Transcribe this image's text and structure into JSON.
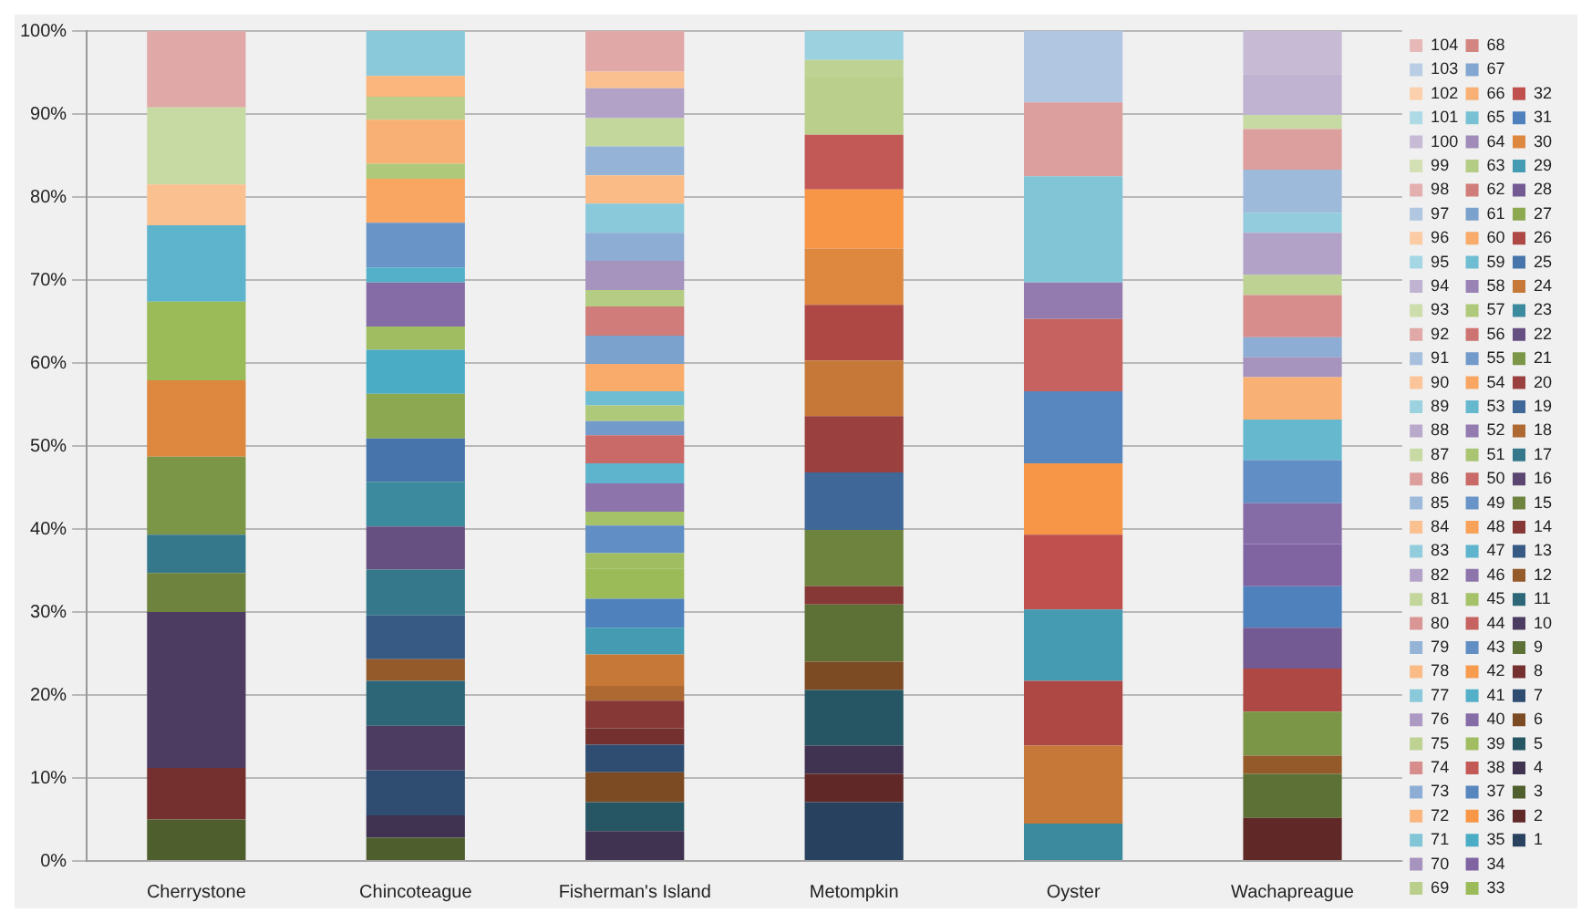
{
  "chart_data": {
    "type": "bar",
    "stacked": true,
    "categories": [
      "Cherrystone",
      "Chincoteague",
      "Fisherman's Island",
      "Metompkin",
      "Oyster",
      "Wachapreague"
    ],
    "ylim": [
      0,
      100
    ],
    "yticks": [
      {
        "value": 0,
        "label": "0%"
      },
      {
        "value": 10,
        "label": "10%"
      },
      {
        "value": 20,
        "label": "20%"
      },
      {
        "value": 30,
        "label": "30%"
      },
      {
        "value": 40,
        "label": "40%"
      },
      {
        "value": 50,
        "label": "50%"
      },
      {
        "value": 60,
        "label": "60%"
      },
      {
        "value": 70,
        "label": "70%"
      },
      {
        "value": 80,
        "label": "80%"
      },
      {
        "value": 90,
        "label": "90%"
      },
      {
        "value": 100,
        "label": "100%"
      }
    ],
    "grid": "y",
    "legend": "right",
    "series": [
      {
        "name": "1",
        "color": "#28415f",
        "values": [
          0,
          0,
          0,
          7.1,
          0,
          0
        ]
      },
      {
        "name": "2",
        "color": "#602827",
        "values": [
          0,
          0,
          0,
          3.4,
          0,
          5.2
        ]
      },
      {
        "name": "3",
        "color": "#4e5e2d",
        "values": [
          5.0,
          2.8,
          0,
          0,
          0,
          0
        ]
      },
      {
        "name": "4",
        "color": "#403251",
        "values": [
          0,
          2.7,
          3.6,
          3.4,
          0,
          0
        ]
      },
      {
        "name": "5",
        "color": "#265663",
        "values": [
          0,
          0,
          3.5,
          6.7,
          0,
          0
        ]
      },
      {
        "name": "6",
        "color": "#7c4b23",
        "values": [
          0,
          0,
          3.6,
          3.4,
          0,
          0
        ]
      },
      {
        "name": "7",
        "color": "#2f4d71",
        "values": [
          0,
          5.4,
          3.3,
          0,
          0,
          0
        ]
      },
      {
        "name": "8",
        "color": "#73302e",
        "values": [
          6.2,
          0,
          2.0,
          0,
          0,
          0
        ]
      },
      {
        "name": "9",
        "color": "#5d7035",
        "values": [
          0,
          0,
          0,
          6.9,
          0,
          5.3
        ]
      },
      {
        "name": "10",
        "color": "#4d3c61",
        "values": [
          18.8,
          5.4,
          0,
          0,
          0,
          0
        ]
      },
      {
        "name": "11",
        "color": "#2d6777",
        "values": [
          0,
          5.4,
          0,
          0,
          0,
          0
        ]
      },
      {
        "name": "12",
        "color": "#945a2a",
        "values": [
          0,
          2.6,
          0,
          0,
          0,
          2.2
        ]
      },
      {
        "name": "13",
        "color": "#375a84",
        "values": [
          0,
          5.3,
          0,
          0,
          0,
          0
        ]
      },
      {
        "name": "14",
        "color": "#863836",
        "values": [
          0,
          0,
          3.3,
          2.2,
          0,
          0
        ]
      },
      {
        "name": "15",
        "color": "#6d833e",
        "values": [
          4.7,
          0,
          0,
          6.8,
          0,
          0
        ]
      },
      {
        "name": "16",
        "color": "#5a4671",
        "values": [
          0,
          0,
          0,
          0,
          0,
          0
        ]
      },
      {
        "name": "17",
        "color": "#35788b",
        "values": [
          4.6,
          5.5,
          0,
          0,
          0,
          0
        ]
      },
      {
        "name": "18",
        "color": "#ad6931",
        "values": [
          0,
          0,
          1.8,
          0,
          0,
          0
        ]
      },
      {
        "name": "19",
        "color": "#3f6797",
        "values": [
          0,
          0,
          0,
          6.9,
          0,
          0
        ]
      },
      {
        "name": "20",
        "color": "#9a403e",
        "values": [
          0,
          0,
          0,
          6.8,
          0,
          0
        ]
      },
      {
        "name": "21",
        "color": "#7c9647",
        "values": [
          9.4,
          0,
          0,
          0,
          0,
          5.3
        ]
      },
      {
        "name": "22",
        "color": "#665082",
        "values": [
          0,
          5.2,
          0,
          0,
          0,
          0
        ]
      },
      {
        "name": "23",
        "color": "#3c8a9e",
        "values": [
          0,
          5.4,
          0,
          0,
          4.5,
          0
        ]
      },
      {
        "name": "24",
        "color": "#c67838",
        "values": [
          0,
          0,
          3.8,
          6.7,
          9.4,
          0
        ]
      },
      {
        "name": "25",
        "color": "#4774aa",
        "values": [
          0,
          5.2,
          0,
          0,
          0,
          0
        ]
      },
      {
        "name": "26",
        "color": "#ad4845",
        "values": [
          0,
          0,
          0,
          6.7,
          7.8,
          5.2
        ]
      },
      {
        "name": "27",
        "color": "#8ca850",
        "values": [
          0,
          5.4,
          0,
          0,
          0,
          0
        ]
      },
      {
        "name": "28",
        "color": "#735a92",
        "values": [
          0,
          0,
          0,
          0,
          0,
          4.9
        ]
      },
      {
        "name": "29",
        "color": "#449bb2",
        "values": [
          0,
          0,
          3.2,
          0,
          8.6,
          0
        ]
      },
      {
        "name": "30",
        "color": "#de873f",
        "values": [
          9.2,
          0,
          0,
          6.8,
          0,
          0
        ]
      },
      {
        "name": "31",
        "color": "#4f81bd",
        "values": [
          0,
          0,
          3.5,
          0,
          0,
          5.0
        ]
      },
      {
        "name": "32",
        "color": "#c0504d",
        "values": [
          0,
          0,
          0,
          0,
          9.0,
          0
        ]
      },
      {
        "name": "33",
        "color": "#9bbb59",
        "values": [
          9.5,
          0,
          3.6,
          0,
          0,
          0
        ]
      },
      {
        "name": "34",
        "color": "#8064a2",
        "values": [
          0,
          0,
          0,
          0,
          0,
          5.1
        ]
      },
      {
        "name": "35",
        "color": "#4bacc6",
        "values": [
          0,
          5.3,
          0,
          0,
          0,
          0
        ]
      },
      {
        "name": "36",
        "color": "#f79646",
        "values": [
          0,
          0,
          0,
          7.1,
          8.6,
          0
        ]
      },
      {
        "name": "37",
        "color": "#5887c0",
        "values": [
          0,
          0,
          0,
          0,
          8.7,
          0
        ]
      },
      {
        "name": "38",
        "color": "#c35956",
        "values": [
          0,
          0,
          0,
          6.6,
          0,
          0
        ]
      },
      {
        "name": "39",
        "color": "#a0be61",
        "values": [
          0,
          2.8,
          1.9,
          0,
          0,
          0
        ]
      },
      {
        "name": "40",
        "color": "#866ca7",
        "values": [
          0,
          5.3,
          0,
          0,
          0,
          4.9
        ]
      },
      {
        "name": "41",
        "color": "#54b0c9",
        "values": [
          0,
          1.8,
          0,
          0,
          0,
          0
        ]
      },
      {
        "name": "42",
        "color": "#f79b4f",
        "values": [
          0,
          0,
          0,
          0,
          0,
          0
        ]
      },
      {
        "name": "43",
        "color": "#618ec4",
        "values": [
          0,
          0,
          3.3,
          0,
          0,
          5.2
        ]
      },
      {
        "name": "44",
        "color": "#c6625f",
        "values": [
          0,
          0,
          0,
          0,
          8.7,
          0
        ]
      },
      {
        "name": "45",
        "color": "#a5c269",
        "values": [
          0,
          0,
          1.7,
          0,
          0,
          0
        ]
      },
      {
        "name": "46",
        "color": "#8d74ab",
        "values": [
          0,
          0,
          3.4,
          0,
          0,
          0
        ]
      },
      {
        "name": "47",
        "color": "#5db4cc",
        "values": [
          9.2,
          0,
          2.4,
          0,
          0,
          0
        ]
      },
      {
        "name": "48",
        "color": "#f8a159",
        "values": [
          0,
          0,
          0,
          0,
          0,
          0
        ]
      },
      {
        "name": "49",
        "color": "#6994c7",
        "values": [
          0,
          5.4,
          0,
          0,
          0,
          0
        ]
      },
      {
        "name": "50",
        "color": "#c96a68",
        "values": [
          0,
          0,
          3.4,
          0,
          0,
          0
        ]
      },
      {
        "name": "51",
        "color": "#aac572",
        "values": [
          0,
          0,
          0,
          0,
          0,
          0
        ]
      },
      {
        "name": "52",
        "color": "#937bb0",
        "values": [
          0,
          0,
          0,
          0,
          4.4,
          0
        ]
      },
      {
        "name": "53",
        "color": "#66b8cf",
        "values": [
          0,
          0,
          0,
          0,
          0,
          4.9
        ]
      },
      {
        "name": "54",
        "color": "#f8a662",
        "values": [
          0,
          5.3,
          0,
          0,
          0,
          0
        ]
      },
      {
        "name": "55",
        "color": "#729aca",
        "values": [
          0,
          0,
          1.7,
          0,
          0,
          0
        ]
      },
      {
        "name": "56",
        "color": "#cd7371",
        "values": [
          0,
          0,
          0,
          0,
          0,
          0
        ]
      },
      {
        "name": "57",
        "color": "#afc97a",
        "values": [
          0,
          1.8,
          1.9,
          0,
          0,
          0
        ]
      },
      {
        "name": "58",
        "color": "#9983b5",
        "values": [
          0,
          0,
          0,
          0,
          0,
          0
        ]
      },
      {
        "name": "59",
        "color": "#6fbdd2",
        "values": [
          0,
          0,
          1.7,
          0,
          0,
          0
        ]
      },
      {
        "name": "60",
        "color": "#f9ab6b",
        "values": [
          0,
          0,
          3.3,
          0,
          0,
          0
        ]
      },
      {
        "name": "61",
        "color": "#7ba1cd",
        "values": [
          0,
          0,
          3.4,
          0,
          0,
          0
        ]
      },
      {
        "name": "62",
        "color": "#d07c7a",
        "values": [
          0,
          0,
          3.5,
          0,
          0,
          0
        ]
      },
      {
        "name": "63",
        "color": "#b4cc83",
        "values": [
          0,
          0,
          2.0,
          0,
          0,
          0
        ]
      },
      {
        "name": "64",
        "color": "#a08bb9",
        "values": [
          0,
          0,
          0,
          0,
          0,
          0
        ]
      },
      {
        "name": "65",
        "color": "#78c1d4",
        "values": [
          0,
          0,
          0,
          0,
          0,
          0
        ]
      },
      {
        "name": "66",
        "color": "#f9b074",
        "values": [
          0,
          5.3,
          0,
          0,
          0,
          5.1
        ]
      },
      {
        "name": "67",
        "color": "#84a7d1",
        "values": [
          0,
          0,
          0,
          0,
          0,
          0
        ]
      },
      {
        "name": "68",
        "color": "#d38582",
        "values": [
          0,
          0,
          0,
          0,
          0,
          0
        ]
      },
      {
        "name": "69",
        "color": "#b9cf8b",
        "values": [
          0,
          2.8,
          0,
          6.9,
          0,
          0
        ]
      },
      {
        "name": "70",
        "color": "#a693be",
        "values": [
          0,
          0,
          3.5,
          0,
          0,
          2.4
        ]
      },
      {
        "name": "71",
        "color": "#81c5d7",
        "values": [
          0,
          0,
          0,
          0,
          12.8,
          0
        ]
      },
      {
        "name": "72",
        "color": "#fab67d",
        "values": [
          0,
          2.5,
          0,
          0,
          0,
          0
        ]
      },
      {
        "name": "73",
        "color": "#8dadd4",
        "values": [
          0,
          0,
          3.4,
          0,
          0,
          2.4
        ]
      },
      {
        "name": "74",
        "color": "#d68d8b",
        "values": [
          0,
          0,
          0,
          0,
          0,
          5.1
        ]
      },
      {
        "name": "75",
        "color": "#bed393",
        "values": [
          0,
          0,
          0,
          2.1,
          0,
          2.4
        ]
      },
      {
        "name": "76",
        "color": "#ac9ac3",
        "values": [
          0,
          0,
          0,
          0,
          0,
          0
        ]
      },
      {
        "name": "77",
        "color": "#8ac9da",
        "values": [
          0,
          5.4,
          3.5,
          0,
          0,
          0
        ]
      },
      {
        "name": "78",
        "color": "#fabb87",
        "values": [
          0,
          0,
          3.4,
          0,
          0,
          0
        ]
      },
      {
        "name": "79",
        "color": "#95b3d7",
        "values": [
          0,
          0,
          3.5,
          0,
          0,
          0
        ]
      },
      {
        "name": "80",
        "color": "#d99694",
        "values": [
          0,
          0,
          0,
          0,
          0,
          0
        ]
      },
      {
        "name": "81",
        "color": "#c3d69b",
        "values": [
          0,
          0,
          3.4,
          0,
          0,
          0
        ]
      },
      {
        "name": "82",
        "color": "#b3a2c7",
        "values": [
          0,
          0,
          3.6,
          0,
          0,
          5.1
        ]
      },
      {
        "name": "83",
        "color": "#93cddd",
        "values": [
          0,
          0,
          0,
          0,
          0,
          2.4
        ]
      },
      {
        "name": "84",
        "color": "#fac090",
        "values": [
          4.9,
          0,
          2.0,
          0,
          0,
          0
        ]
      },
      {
        "name": "85",
        "color": "#9ebadb",
        "values": [
          0,
          0,
          0,
          0,
          0,
          5.2
        ]
      },
      {
        "name": "86",
        "color": "#dc9f9d",
        "values": [
          0,
          0,
          0,
          0,
          8.9,
          4.9
        ]
      },
      {
        "name": "87",
        "color": "#c8daa4",
        "values": [
          9.3,
          0,
          0,
          0,
          0,
          1.7
        ]
      },
      {
        "name": "88",
        "color": "#b9aacc",
        "values": [
          0,
          0,
          0,
          0,
          0,
          0
        ]
      },
      {
        "name": "89",
        "color": "#9cd1e0",
        "values": [
          0,
          0,
          0,
          3.5,
          0,
          0
        ]
      },
      {
        "name": "90",
        "color": "#fbc599",
        "values": [
          0,
          0,
          0,
          0,
          0,
          0
        ]
      },
      {
        "name": "91",
        "color": "#a7c0de",
        "values": [
          0,
          0,
          0,
          0,
          0,
          0
        ]
      },
      {
        "name": "92",
        "color": "#e0a8a6",
        "values": [
          9.2,
          0,
          4.9,
          0,
          0,
          0
        ]
      },
      {
        "name": "93",
        "color": "#cdddac",
        "values": [
          0,
          0,
          0,
          0,
          0,
          0
        ]
      },
      {
        "name": "94",
        "color": "#c0b2d1",
        "values": [
          0,
          0,
          0,
          0,
          0,
          4.9
        ]
      },
      {
        "name": "95",
        "color": "#a5d6e3",
        "values": [
          0,
          0,
          0,
          0,
          0,
          0
        ]
      },
      {
        "name": "96",
        "color": "#fbcba3",
        "values": [
          0,
          0,
          0,
          0,
          0,
          0
        ]
      },
      {
        "name": "97",
        "color": "#b0c6e1",
        "values": [
          0,
          0,
          0,
          0,
          8.6,
          0
        ]
      },
      {
        "name": "98",
        "color": "#e3b0af",
        "values": [
          0,
          0,
          0,
          0,
          0,
          0
        ]
      },
      {
        "name": "99",
        "color": "#d2e0b4",
        "values": [
          0,
          0,
          0,
          0,
          0,
          0
        ]
      },
      {
        "name": "100",
        "color": "#c6bad5",
        "values": [
          0,
          0,
          0,
          0,
          0,
          5.2
        ]
      },
      {
        "name": "101",
        "color": "#aedae5",
        "values": [
          0,
          0,
          0,
          0,
          0,
          0
        ]
      },
      {
        "name": "102",
        "color": "#fcd0ac",
        "values": [
          0,
          0,
          0,
          0,
          0,
          0
        ]
      },
      {
        "name": "103",
        "color": "#b9cde5",
        "values": [
          0,
          0,
          0,
          0,
          0,
          0
        ]
      },
      {
        "name": "104",
        "color": "#e6b9b8",
        "values": [
          0,
          0,
          0,
          0,
          0,
          0
        ]
      }
    ]
  }
}
